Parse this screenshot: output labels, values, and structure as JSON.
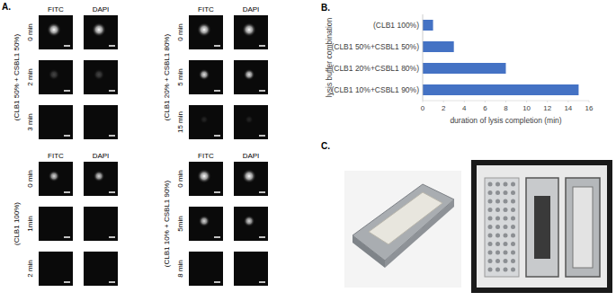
{
  "panel_labels": [
    "A.",
    "B.",
    "C."
  ],
  "microscopy": {
    "channels": [
      "FITC",
      "DAPI"
    ],
    "groups": [
      {
        "label": "(CLB1 50% + CSBL1 50%)",
        "times": [
          "0 min",
          "2 min",
          "3 min"
        ]
      },
      {
        "label": "(CLB1 20% + CSBL1 80%)",
        "times": [
          "0 min",
          "5 min",
          "15 min"
        ]
      },
      {
        "label": "(CLB1 100%)",
        "times": [
          "0 min",
          "1min",
          "2 min"
        ]
      },
      {
        "label": "(CLB1 10% + CSBL1 90%)",
        "times": [
          "0 min",
          "5min",
          "8 min"
        ]
      }
    ]
  },
  "chart_data": {
    "type": "bar",
    "orientation": "horizontal",
    "categories": [
      "(CLB1 100%)",
      "(CLB1 50%+CSBL1 50%)",
      "(CLB1 20%+CSBL1 80%)",
      "(CLB1 10%+CSBL1 90%)"
    ],
    "values": [
      1,
      3,
      8,
      15
    ],
    "color": "#4472c4",
    "xlabel": "duration of lysis completion (min)",
    "ylabel": "lysis buffer combination",
    "xlim": [
      0,
      16
    ],
    "xticks": [
      0,
      2,
      4,
      6,
      8,
      10,
      12,
      14,
      16
    ],
    "grid": false
  }
}
